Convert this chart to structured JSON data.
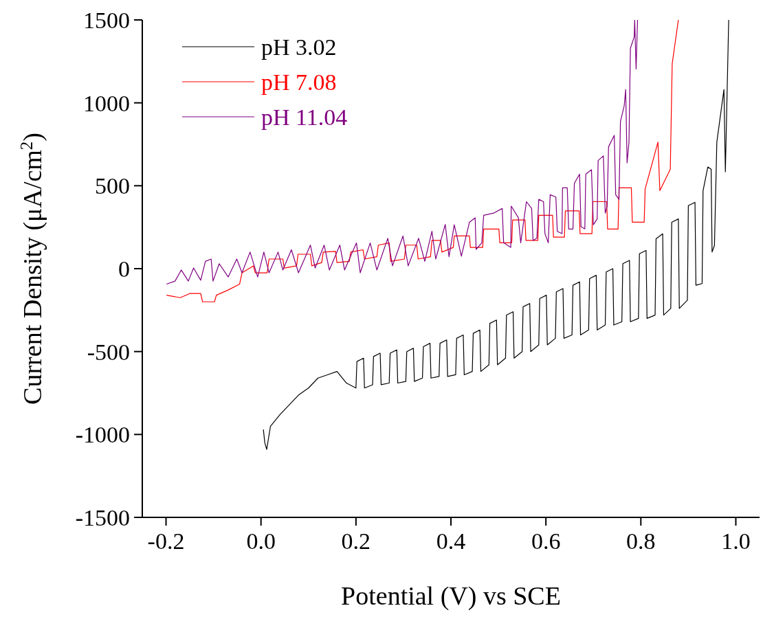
{
  "chart_data": {
    "type": "line",
    "xlabel": "Potential (V) vs SCE",
    "ylabel": "Current Density (μA/cm$^{2}$)",
    "xlim": [
      -0.25,
      1.05
    ],
    "ylim": [
      -1500,
      1500
    ],
    "xticks": [
      -0.2,
      {
        "value": 0,
        "label": "0.0"
      },
      0.2,
      0.4,
      0.6,
      0.8,
      {
        "value": 1,
        "label": "1.0"
      }
    ],
    "yticks": [
      -1500,
      -1000,
      -500,
      0,
      500,
      1000,
      1500
    ],
    "grid": false,
    "legend": "top left",
    "line_style": "solid",
    "marker": "none",
    "series": [
      {
        "name": "pH 3.02",
        "color": "#000000",
        "x": [
          0.005,
          0.008,
          0.012,
          0.02,
          0.04,
          0.06,
          0.08,
          0.1,
          0.12,
          0.14,
          0.16,
          0.18,
          0.2,
          0.202,
          0.216,
          0.218,
          0.235,
          0.237,
          0.251,
          0.253,
          0.27,
          0.272,
          0.286,
          0.288,
          0.305,
          0.307,
          0.321,
          0.323,
          0.34,
          0.342,
          0.356,
          0.358,
          0.375,
          0.377,
          0.391,
          0.393,
          0.41,
          0.412,
          0.426,
          0.428,
          0.445,
          0.447,
          0.461,
          0.463,
          0.48,
          0.482,
          0.496,
          0.498,
          0.515,
          0.517,
          0.531,
          0.533,
          0.55,
          0.552,
          0.566,
          0.568,
          0.585,
          0.587,
          0.601,
          0.603,
          0.62,
          0.622,
          0.636,
          0.638,
          0.655,
          0.657,
          0.671,
          0.673,
          0.69,
          0.692,
          0.706,
          0.708,
          0.725,
          0.727,
          0.741,
          0.743,
          0.76,
          0.762,
          0.776,
          0.778,
          0.795,
          0.797,
          0.811,
          0.813,
          0.83,
          0.832,
          0.846,
          0.848,
          0.863,
          0.865,
          0.879,
          0.881,
          0.898,
          0.9,
          0.914,
          0.916,
          0.929,
          0.931,
          0.941,
          0.948,
          0.95,
          0.955,
          0.96,
          0.975,
          0.978,
          0.985
        ],
        "values": [
          -970,
          -1050,
          -1090,
          -950,
          -880,
          -820,
          -760,
          -720,
          -660,
          -640,
          -620,
          -690,
          -720,
          -560,
          -540,
          -720,
          -700,
          -530,
          -510,
          -700,
          -690,
          -510,
          -490,
          -690,
          -680,
          -500,
          -480,
          -680,
          -660,
          -470,
          -450,
          -660,
          -650,
          -450,
          -430,
          -650,
          -640,
          -420,
          -400,
          -640,
          -620,
          -390,
          -370,
          -620,
          -580,
          -330,
          -310,
          -580,
          -540,
          -280,
          -260,
          -540,
          -500,
          -230,
          -210,
          -500,
          -460,
          -180,
          -160,
          -460,
          -420,
          -140,
          -120,
          -420,
          -400,
          -100,
          -80,
          -400,
          -370,
          -60,
          -40,
          -370,
          -340,
          -20,
          0,
          -340,
          -320,
          30,
          50,
          -320,
          -300,
          90,
          110,
          -300,
          -280,
          180,
          210,
          -280,
          -240,
          280,
          300,
          -240,
          -190,
          380,
          400,
          -100,
          -90,
          470,
          613,
          600,
          100,
          140,
          763,
          1080,
          584,
          1500
        ]
      },
      {
        "name": "pH 7.08",
        "color": "#ff0000",
        "x": [
          -0.199,
          -0.17,
          -0.15,
          -0.127,
          -0.123,
          -0.098,
          -0.094,
          -0.07,
          -0.045,
          -0.04,
          -0.016,
          -0.012,
          0.013,
          0.017,
          0.046,
          0.049,
          0.075,
          0.078,
          0.104,
          0.107,
          0.128,
          0.131,
          0.157,
          0.16,
          0.186,
          0.189,
          0.215,
          0.218,
          0.244,
          0.247,
          0.27,
          0.273,
          0.302,
          0.305,
          0.328,
          0.331,
          0.357,
          0.36,
          0.378,
          0.381,
          0.405,
          0.407,
          0.439,
          0.441,
          0.467,
          0.469,
          0.501,
          0.503,
          0.528,
          0.53,
          0.556,
          0.558,
          0.583,
          0.585,
          0.614,
          0.616,
          0.639,
          0.641,
          0.67,
          0.672,
          0.697,
          0.699,
          0.728,
          0.73,
          0.752,
          0.754,
          0.78,
          0.782,
          0.807,
          0.809,
          0.836,
          0.84,
          0.862,
          0.866,
          0.879
        ],
        "values": [
          -160,
          -175,
          -150,
          -150,
          -200,
          -200,
          -160,
          -130,
          -93,
          -25,
          17,
          -25,
          -25,
          58,
          58,
          4,
          17,
          87,
          87,
          17,
          37,
          100,
          104,
          37,
          44,
          100,
          114,
          58,
          72,
          142,
          155,
          44,
          58,
          142,
          142,
          58,
          72,
          170,
          170,
          100,
          128,
          197,
          197,
          128,
          128,
          239,
          239,
          156,
          156,
          294,
          294,
          170,
          170,
          322,
          322,
          190,
          190,
          349,
          349,
          211,
          211,
          404,
          404,
          239,
          239,
          487,
          487,
          280,
          280,
          480,
          763,
          470,
          600,
          1235,
          1500
        ]
      },
      {
        "name": "pH 11.04",
        "color": "#800080",
        "x": [
          -0.199,
          -0.181,
          -0.168,
          -0.153,
          -0.142,
          -0.127,
          -0.117,
          -0.105,
          -0.101,
          -0.088,
          -0.069,
          -0.051,
          -0.04,
          -0.023,
          -0.007,
          0.006,
          0.017,
          0.036,
          0.046,
          0.064,
          0.079,
          0.104,
          0.114,
          0.133,
          0.144,
          0.166,
          0.176,
          0.201,
          0.209,
          0.23,
          0.244,
          0.267,
          0.277,
          0.299,
          0.31,
          0.332,
          0.345,
          0.36,
          0.368,
          0.388,
          0.396,
          0.407,
          0.422,
          0.439,
          0.451,
          0.453,
          0.465,
          0.469,
          0.49,
          0.508,
          0.511,
          0.526,
          0.527,
          0.542,
          0.547,
          0.559,
          0.57,
          0.573,
          0.581,
          0.585,
          0.595,
          0.598,
          0.605,
          0.609,
          0.621,
          0.624,
          0.634,
          0.635,
          0.645,
          0.648,
          0.657,
          0.66,
          0.671,
          0.674,
          0.682,
          0.684,
          0.696,
          0.7,
          0.708,
          0.71,
          0.721,
          0.725,
          0.729,
          0.732,
          0.744,
          0.747,
          0.754,
          0.757,
          0.765,
          0.768,
          0.771,
          0.775,
          0.778,
          0.786,
          0.787,
          0.79,
          0.793
        ],
        "values": [
          -93,
          -75,
          -8,
          -75,
          4,
          -70,
          44,
          58,
          -75,
          30,
          -50,
          58,
          -25,
          100,
          -50,
          100,
          -25,
          100,
          -8,
          114,
          -25,
          142,
          4,
          142,
          -8,
          142,
          -8,
          155,
          -25,
          155,
          -8,
          183,
          17,
          197,
          17,
          183,
          44,
          225,
          58,
          267,
          72,
          265,
          75,
          280,
          307,
          116,
          156,
          322,
          335,
          363,
          156,
          128,
          377,
          307,
          156,
          404,
          363,
          170,
          184,
          418,
          404,
          211,
          156,
          446,
          432,
          225,
          211,
          487,
          487,
          239,
          239,
          515,
          570,
          253,
          240,
          570,
          597,
          265,
          300,
          652,
          680,
          335,
          377,
          735,
          804,
          446,
          418,
          887,
          983,
          1080,
          638,
          763,
          1329,
          1398,
          1500,
          1204,
          1500
        ]
      }
    ]
  }
}
